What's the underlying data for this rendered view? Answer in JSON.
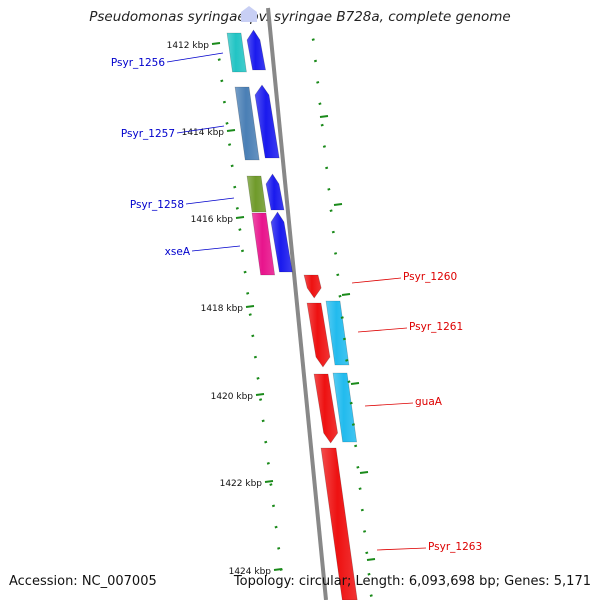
{
  "title": "Pseudomonas syringae pv. syringae B728a, complete genome",
  "accession_text": "Accession: NC_007005",
  "topology_text": "Topology: circular; Length: 6,093,698 bp; Genes: 5,171",
  "kbp_labels": [
    "1412 kbp",
    "1414 kbp",
    "1416 kbp",
    "1418 kbp",
    "1420 kbp",
    "1422 kbp",
    "1424 kbp"
  ],
  "gene_labels": {
    "forward": [
      "Psyr_1256",
      "Psyr_1257",
      "Psyr_1258",
      "xseA"
    ],
    "reverse": [
      "Psyr_1260",
      "Psyr_1261",
      "guaA",
      "Psyr_1263"
    ]
  },
  "colors": {
    "forward_label": "#0000cc",
    "reverse_label": "#dd0000",
    "tick": "#1a8a1a",
    "backbone": "#888888",
    "forward_cds": "#1a1aee",
    "reverse_cds": "#ee1111",
    "reverse_gene_cyan": "#22bbee",
    "cog_cyan": "#22c4c4",
    "cog_steelblue": "#4a7fb5",
    "cog_olive": "#6f9a2a",
    "cog_magenta": "#e8148c"
  }
}
